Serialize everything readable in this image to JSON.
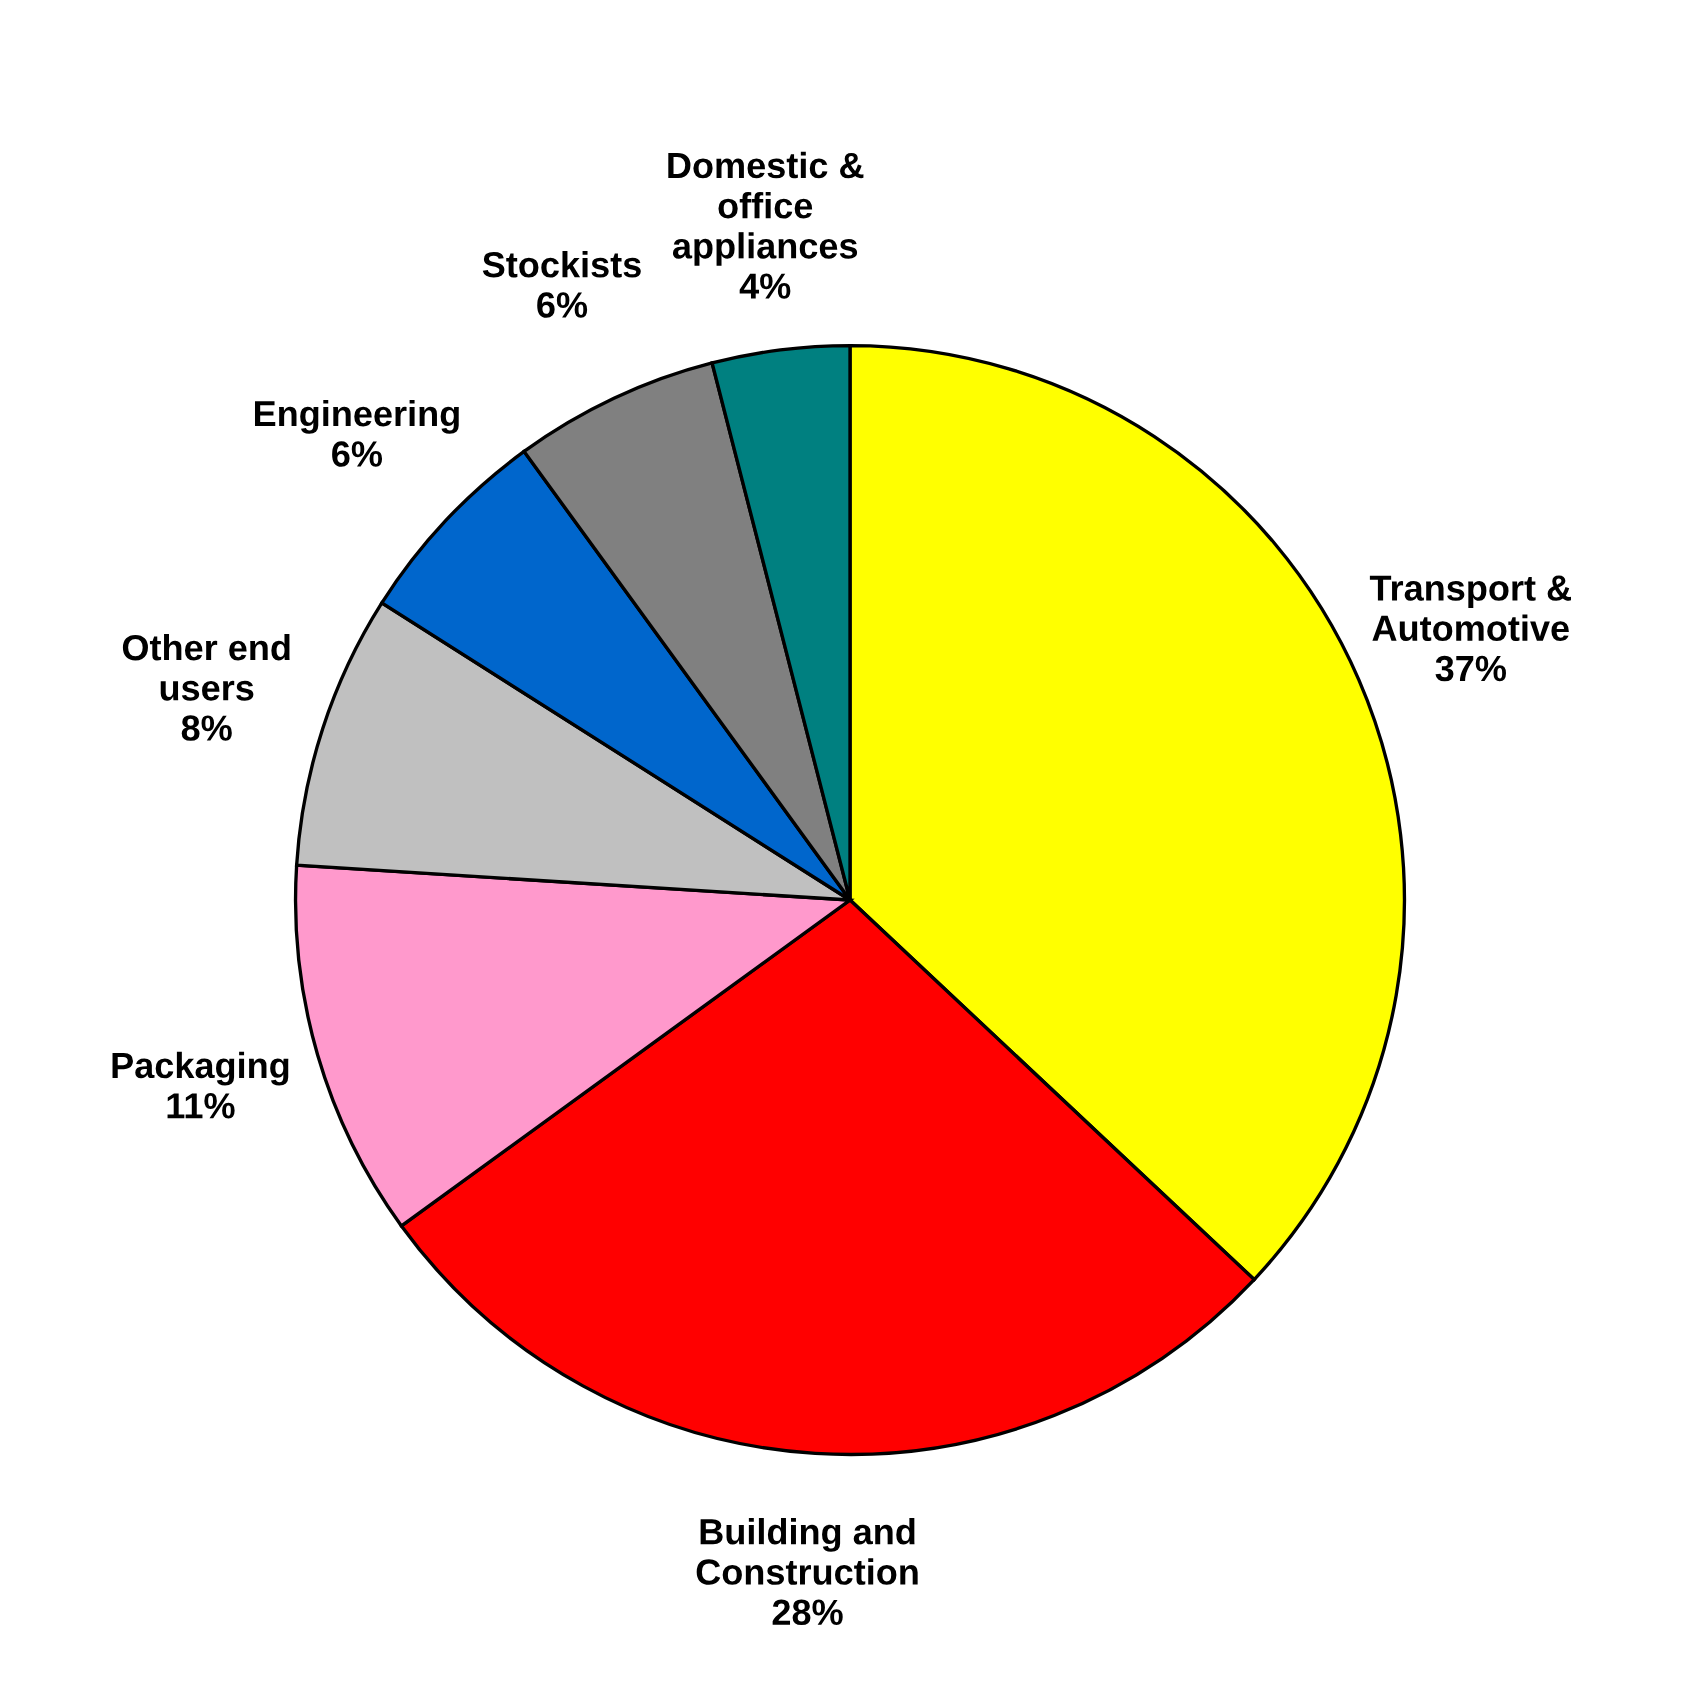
{
  "chart_data": {
    "type": "pie",
    "categories": [
      "Transport &\nAutomotive",
      "Building and\nConstruction",
      "Packaging",
      "Other end\nusers",
      "Engineering",
      "Stockists",
      "Domestic &\noffice\nappliances"
    ],
    "values": [
      37,
      28,
      11,
      8,
      6,
      6,
      4
    ],
    "value_labels": [
      "37%",
      "28%",
      "11%",
      "8%",
      "6%",
      "6%",
      "4%"
    ],
    "colors": [
      "#ffff00",
      "#ff0000",
      "#ff99cc",
      "#c0c0c0",
      "#0066cc",
      "#808080",
      "#008080"
    ]
  }
}
